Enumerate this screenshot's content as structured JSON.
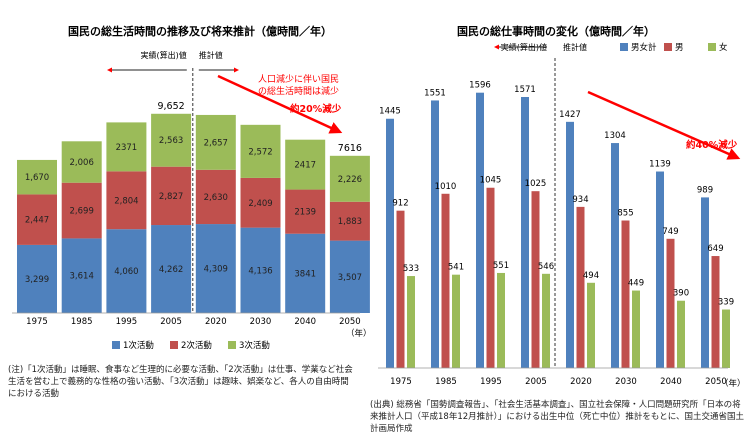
{
  "chart_data": [
    {
      "type": "bar",
      "stacked": true,
      "title": "国民の総生活時間の推移及び将来推計（億時間／年）",
      "categories": [
        "1975",
        "1985",
        "1995",
        "2005",
        "2020",
        "2030",
        "2040",
        "2050"
      ],
      "x_unit": "（年）",
      "series": [
        {
          "name": "1次活動",
          "values": [
            3299,
            3614,
            4060,
            4262,
            4309,
            4136,
            3841,
            3507
          ],
          "labels": [
            "3,299",
            "3,614",
            "4,060",
            "4,262",
            "4,309",
            "4,136",
            "3841",
            "3,507"
          ]
        },
        {
          "name": "2次活動",
          "values": [
            2447,
            2699,
            2804,
            2827,
            2630,
            2409,
            2139,
            1883
          ],
          "labels": [
            "2,447",
            "2,699",
            "2,804",
            "2,827",
            "2,630",
            "2,409",
            "2139",
            "1,883"
          ]
        },
        {
          "name": "3次活動",
          "values": [
            1670,
            2006,
            2371,
            2563,
            2657,
            2572,
            2417,
            2226
          ],
          "labels": [
            "1,670",
            "2,006",
            "2371",
            "2,563",
            "2,657",
            "2,572",
            "2417",
            "2,226"
          ]
        }
      ],
      "totals": [
        {
          "category": "2005",
          "label": "9,652"
        },
        {
          "category": "2050",
          "label": "7616"
        }
      ],
      "ylim": [
        0,
        10500
      ],
      "grid": false,
      "legend_position": "bottom",
      "region_labels": {
        "actual": "実績(算出)値",
        "estimate": "推計値"
      },
      "annotation": {
        "line1": "人口減少に伴い国民",
        "line2": "の総生活時間は減少",
        "line3": "約20%減少"
      },
      "colors": {
        "1次活動": "#4f81bd",
        "2次活動": "#c0504d",
        "3次活動": "#9bbb59"
      }
    },
    {
      "type": "bar",
      "stacked": false,
      "title": "国民の総仕事時間の変化（億時間／年）",
      "categories": [
        "1975",
        "1985",
        "1995",
        "2005",
        "2020",
        "2030",
        "2040",
        "2050"
      ],
      "x_unit": "（年）",
      "series": [
        {
          "name": "男女計",
          "values": [
            1445,
            1551,
            1596,
            1571,
            1427,
            1304,
            1139,
            989
          ]
        },
        {
          "name": "男",
          "values": [
            912,
            1010,
            1045,
            1025,
            934,
            855,
            749,
            649
          ]
        },
        {
          "name": "女",
          "values": [
            533,
            541,
            551,
            546,
            494,
            449,
            390,
            339
          ]
        }
      ],
      "ylim": [
        0,
        1700
      ],
      "grid": false,
      "legend_position": "top-right",
      "region_labels": {
        "actual": "実績(算出)値",
        "estimate": "推計値"
      },
      "annotation": {
        "line1": "約40%減少"
      },
      "colors": {
        "男女計": "#4f81bd",
        "男": "#c0504d",
        "女": "#9bbb59"
      }
    }
  ],
  "notes": {
    "left": "(注)「1次活動」は睡眠、食事など生理的に必要な活動、「2次活動」は仕事、学業など社会生活を営む上で義務的な性格の強い活動、「3次活動」は趣味、娯楽など、各人の自由時間における活動",
    "right": "(出典) 総務省「国勢調査報告」、「社会生活基本調査」、国立社会保障・人口問題研究所「日本の将来推計人口（平成18年12月推計）」における出生中位（死亡中位）推計をもとに、国土交通省国土計画局作成"
  }
}
